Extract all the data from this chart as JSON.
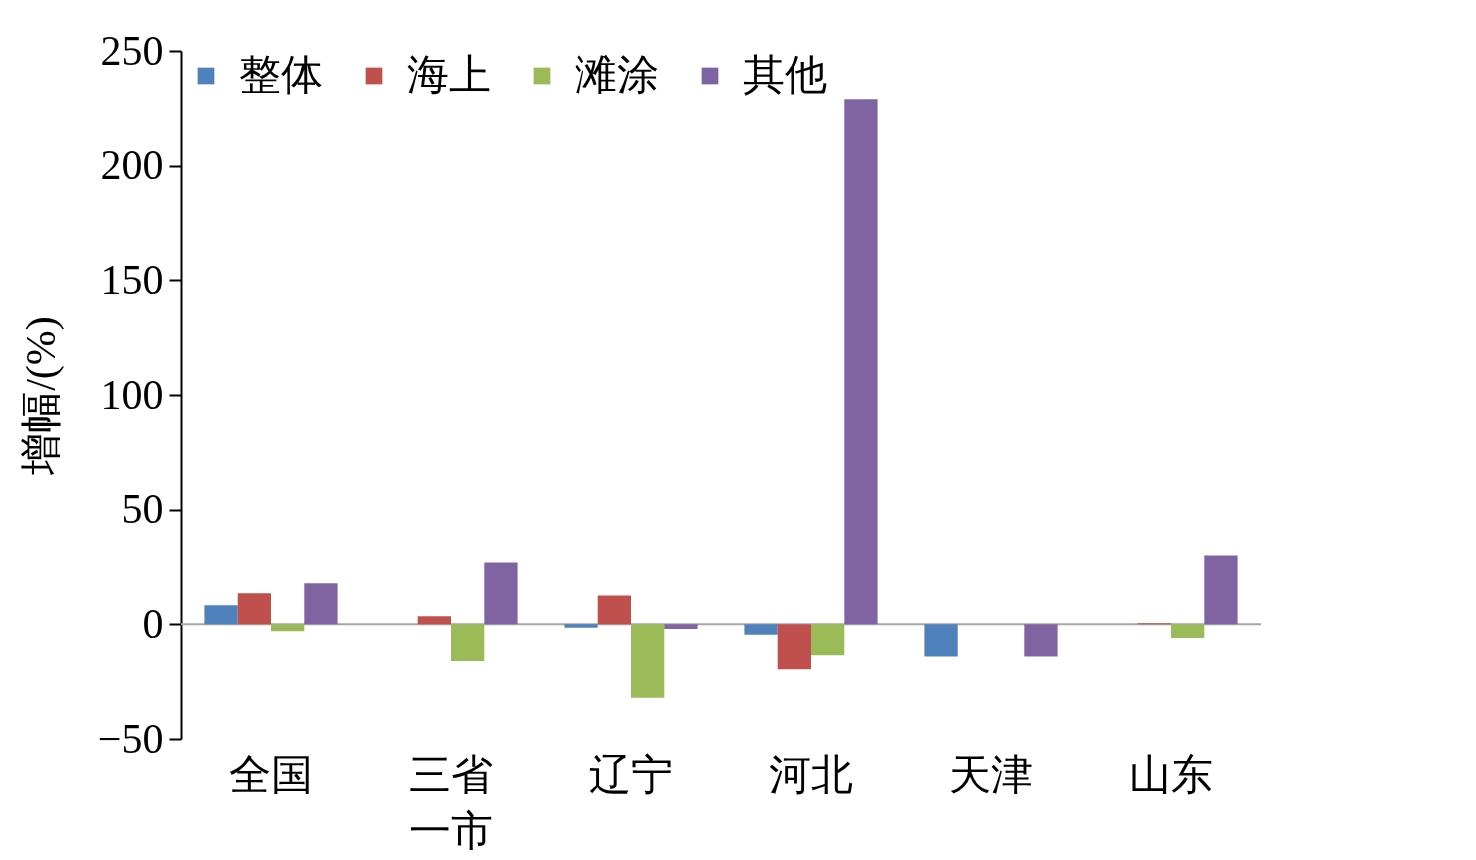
{
  "chart_data": {
    "type": "bar",
    "ylabel": "增幅/(%)",
    "categories": [
      "全国",
      "三省一市",
      "辽宁",
      "河北",
      "天津",
      "山东"
    ],
    "series": [
      {
        "name": "整体",
        "color": "#4f81bd",
        "values": [
          8.3,
          null,
          -1.5,
          -4.5,
          -14,
          null
        ]
      },
      {
        "name": "海上",
        "color": "#c0504d",
        "values": [
          13.5,
          3.5,
          12.6,
          -19.6,
          null,
          0.5
        ]
      },
      {
        "name": "滩涂",
        "color": "#9bbb59",
        "values": [
          -3,
          -16,
          -32,
          -13.5,
          null,
          -6
        ]
      },
      {
        "name": "其他",
        "color": "#8064a2",
        "values": [
          17.9,
          27,
          -2,
          229,
          -14,
          30
        ]
      }
    ],
    "ylim": [
      -50,
      250
    ],
    "yticks": [
      -50,
      0,
      50,
      100,
      150,
      200,
      250
    ],
    "ref_lines": [
      {
        "axis": "y",
        "value": 0,
        "color": "#a6a6a6"
      }
    ],
    "grid": false,
    "legend": "top left"
  }
}
